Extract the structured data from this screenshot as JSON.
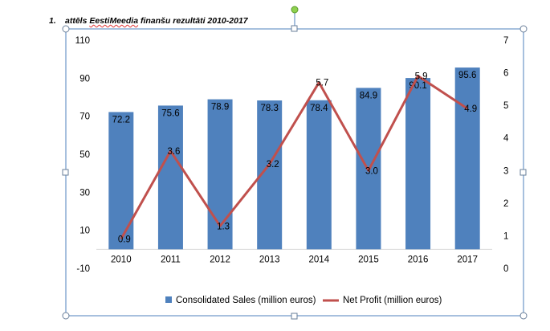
{
  "caption": {
    "number": "1.",
    "prefix": "attēls ",
    "underlined": "EestiMeedia",
    "suffix": " finanšu rezultāti 2010-2017"
  },
  "colors": {
    "bar": "#4f81bd",
    "line": "#c0504d",
    "frame": "#4f81bd"
  },
  "chart_data": {
    "type": "bar",
    "categories": [
      "2010",
      "2011",
      "2012",
      "2013",
      "2014",
      "2015",
      "2016",
      "2017"
    ],
    "series": [
      {
        "name": "Consolidated Sales (million euros)",
        "type": "bar",
        "axis": "left",
        "values": [
          72.2,
          75.6,
          78.9,
          78.3,
          78.4,
          84.9,
          90.1,
          95.6
        ],
        "labels": [
          "72.2",
          "75.6",
          "78.9",
          "78.3",
          "78.4",
          "84.9",
          "90.1",
          "95.6"
        ]
      },
      {
        "name": "Net Profit (million euros)",
        "type": "line",
        "axis": "right",
        "values": [
          0.9,
          3.6,
          1.3,
          3.2,
          5.7,
          3.0,
          5.9,
          4.9
        ],
        "labels": [
          "0.9",
          "3.6",
          "1.3",
          "3.2",
          "5.7",
          "3.0",
          "5.9",
          "4.9"
        ]
      }
    ],
    "left_axis": {
      "ylim": [
        -10,
        110
      ],
      "ticks": [
        "-10",
        "10",
        "30",
        "50",
        "70",
        "90",
        "110"
      ]
    },
    "right_axis": {
      "ylim": [
        0,
        7
      ],
      "ticks": [
        "0",
        "1",
        "2",
        "3",
        "4",
        "5",
        "6",
        "7"
      ]
    },
    "legend_position": "bottom",
    "grid": false
  }
}
